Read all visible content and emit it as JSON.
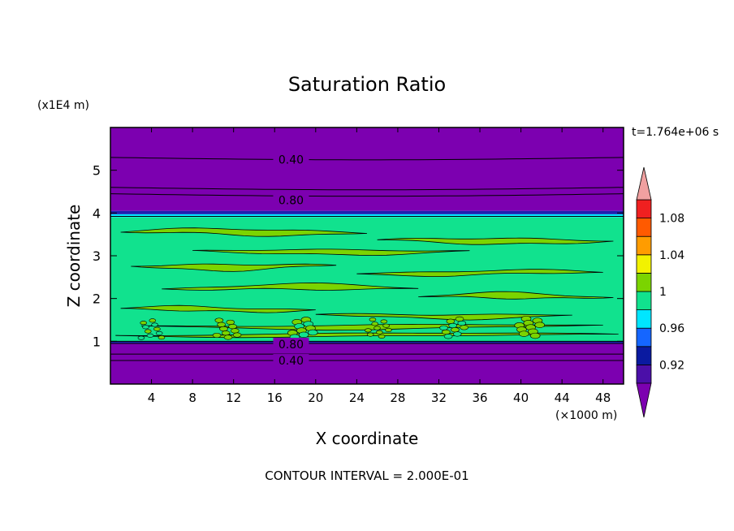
{
  "chart_data": {
    "type": "heatmap",
    "title": "Saturation Ratio",
    "xlabel": "X coordinate",
    "ylabel": "Z coordinate",
    "x_unit": "(×1000 m)",
    "y_unit": "(x1E4 m)",
    "time_label": "t=1.764e+06 s",
    "footer": "CONTOUR INTERVAL = 2.000E-01",
    "xlim": [
      0,
      50
    ],
    "ylim": [
      0,
      6
    ],
    "x_ticks": [
      "4",
      "8",
      "12",
      "16",
      "20",
      "24",
      "28",
      "32",
      "36",
      "40",
      "44",
      "48"
    ],
    "x_tick_values": [
      4,
      8,
      12,
      16,
      20,
      24,
      28,
      32,
      36,
      40,
      44,
      48
    ],
    "y_ticks": [
      "1",
      "2",
      "3",
      "4",
      "5"
    ],
    "y_tick_values": [
      1,
      2,
      3,
      4,
      5
    ],
    "contour_labels": [
      {
        "text": "0.40",
        "x": 17.6,
        "z": 5.25
      },
      {
        "text": "0.80",
        "x": 17.6,
        "z": 4.3
      },
      {
        "text": "0.80",
        "x": 17.6,
        "z": 0.93
      },
      {
        "text": "0.40",
        "x": 17.6,
        "z": 0.55
      }
    ],
    "bands": [
      {
        "z0": 4.05,
        "z1": 6.0,
        "color": "#7c00b0"
      },
      {
        "z0": 3.97,
        "z1": 4.05,
        "color": "#1f1fb0"
      },
      {
        "z0": 3.9,
        "z1": 3.97,
        "color": "#00e8ff"
      },
      {
        "z0": 1.0,
        "z1": 3.9,
        "color": "#11e28e"
      },
      {
        "z0": 0.95,
        "z1": 1.0,
        "color": "#1f1fb0"
      },
      {
        "z0": 0.0,
        "z1": 0.95,
        "color": "#7c00b0"
      }
    ],
    "above_contours_z": [
      5.3,
      4.6,
      4.45
    ],
    "below_contours_z": [
      0.95,
      0.7,
      0.55
    ],
    "green_patches": [
      {
        "z": 3.55,
        "x0": 1,
        "x1": 25,
        "h": 0.2
      },
      {
        "z": 3.35,
        "x0": 26,
        "x1": 49,
        "h": 0.18
      },
      {
        "z": 3.1,
        "x0": 8,
        "x1": 35,
        "h": 0.15
      },
      {
        "z": 2.75,
        "x0": 2,
        "x1": 22,
        "h": 0.18
      },
      {
        "z": 2.6,
        "x0": 24,
        "x1": 48,
        "h": 0.15
      },
      {
        "z": 2.25,
        "x0": 5,
        "x1": 30,
        "h": 0.17
      },
      {
        "z": 2.05,
        "x0": 30,
        "x1": 49,
        "h": 0.16
      },
      {
        "z": 1.75,
        "x0": 1,
        "x1": 20,
        "h": 0.15
      },
      {
        "z": 1.6,
        "x0": 20,
        "x1": 45,
        "h": 0.14
      },
      {
        "z": 1.35,
        "x0": 3,
        "x1": 48,
        "h": 0.12
      },
      {
        "z": 1.15,
        "x0": 0.5,
        "x1": 49.5,
        "h": 0.1
      }
    ],
    "colorbar": {
      "levels": [
        "0.92",
        "0.96",
        "1",
        "1.04",
        "1.08"
      ],
      "level_values": [
        0.92,
        0.96,
        1.0,
        1.04,
        1.08
      ],
      "colors": [
        "#4b0fa8",
        "#0a1aa0",
        "#1566ff",
        "#00e6ff",
        "#11e28e",
        "#7bd400",
        "#f2f200",
        "#ff9c00",
        "#ff5a00",
        "#f02020"
      ],
      "under_color": "#7c00b0",
      "over_color": "#f0a0a0",
      "range": [
        0.9,
        1.1
      ]
    }
  }
}
